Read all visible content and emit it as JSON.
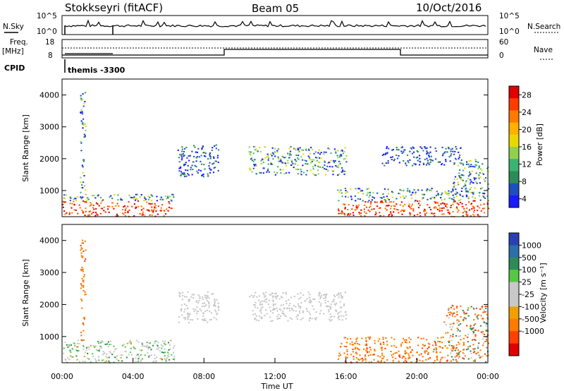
{
  "header": {
    "radar": "Stokkseyri (fitACF)",
    "beam": "Beam 05",
    "date": "10/Oct/2016"
  },
  "status_panel": {
    "nsky_label": "N.Sky",
    "nsky_ticks": [
      "10^5",
      "10^0"
    ],
    "nsearch_label": "N.Search",
    "nsearch_ticks": [
      "10^5",
      "10^0"
    ],
    "freq_label_1": "Freq.",
    "freq_label_2": "[MHz]",
    "freq_ticks": [
      "18",
      "8"
    ],
    "nave_label": "Nave",
    "nave_ticks": [
      "60",
      "0"
    ],
    "cpid_label": "CPID",
    "cpid_value": "themis -3300"
  },
  "chart_data": [
    {
      "type": "heatmap",
      "name": "power",
      "ylabel": "Slant Range [km]",
      "yticks": [
        1000,
        2000,
        3000,
        4000
      ],
      "ylim": [
        180,
        4500
      ],
      "xlim_hours": [
        0,
        24
      ],
      "colorbar": {
        "label": "Power [dB]",
        "ticks": [
          "4",
          "8",
          "12",
          "16",
          "20",
          "24",
          "28"
        ],
        "colors": [
          "#1a1aff",
          "#1f4fbf",
          "#2e8b57",
          "#3cb371",
          "#8fd14f",
          "#e8d800",
          "#ffb000",
          "#ff7a00",
          "#ff3b00",
          "#e00000"
        ]
      },
      "echo_regions": [
        {
          "t": [
            0.0,
            6.3
          ],
          "r": [
            200,
            900
          ],
          "level": "high"
        },
        {
          "t": [
            1.0,
            1.3
          ],
          "r": [
            900,
            4100
          ],
          "level": "mid"
        },
        {
          "t": [
            6.5,
            8.8
          ],
          "r": [
            1450,
            2450
          ],
          "level": "low"
        },
        {
          "t": [
            10.5,
            16.0
          ],
          "r": [
            1500,
            2400
          ],
          "level": "mid"
        },
        {
          "t": [
            15.5,
            24.0
          ],
          "r": [
            200,
            1100
          ],
          "level": "high"
        },
        {
          "t": [
            18.0,
            22.5
          ],
          "r": [
            1800,
            2400
          ],
          "level": "low"
        },
        {
          "t": [
            22.0,
            24.0
          ],
          "r": [
            900,
            2000
          ],
          "level": "mid"
        }
      ]
    },
    {
      "type": "heatmap",
      "name": "velocity",
      "ylabel": "Slant Range [km]",
      "yticks": [
        1000,
        2000,
        3000,
        4000
      ],
      "ylim": [
        180,
        4500
      ],
      "xlim_hours": [
        0,
        24
      ],
      "xticks": [
        "00:00",
        "04:00",
        "08:00",
        "12:00",
        "16:00",
        "20:00",
        "00:00"
      ],
      "xlabel": "Time UT",
      "colorbar": {
        "label": "Velocity [m s⁻¹]",
        "ticks": [
          "1000",
          "500",
          "100",
          "25",
          "-25",
          "-100",
          "-500",
          "-1000"
        ],
        "colors": [
          "#2b3fb5",
          "#2d6fa8",
          "#2e8b57",
          "#57c845",
          "#c8c8c8",
          "#c8c8c8",
          "#f0a000",
          "#ff7a00",
          "#ff4000",
          "#e00000"
        ]
      },
      "echo_regions": [
        {
          "t": [
            0.0,
            6.3
          ],
          "r": [
            200,
            900
          ],
          "level": "near-zero/green"
        },
        {
          "t": [
            1.0,
            1.3
          ],
          "r": [
            900,
            4100
          ],
          "level": "orange"
        },
        {
          "t": [
            6.5,
            8.8
          ],
          "r": [
            1450,
            2450
          ],
          "level": "grey"
        },
        {
          "t": [
            10.5,
            16.0
          ],
          "r": [
            1500,
            2400
          ],
          "level": "grey"
        },
        {
          "t": [
            15.5,
            21.5
          ],
          "r": [
            200,
            1000
          ],
          "level": "orange"
        },
        {
          "t": [
            21.5,
            24.0
          ],
          "r": [
            200,
            2000
          ],
          "level": "mixed"
        }
      ]
    }
  ]
}
